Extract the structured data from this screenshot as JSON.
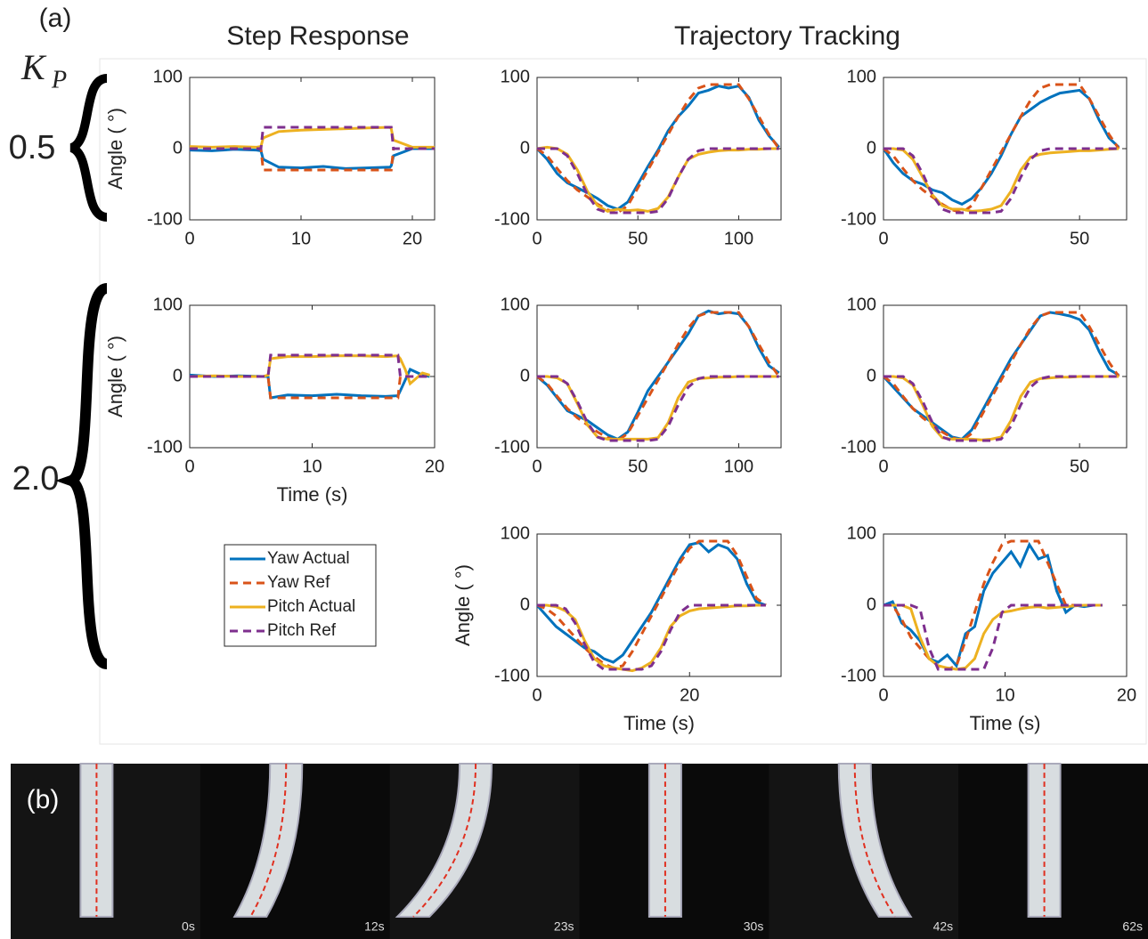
{
  "panel_a_label": "(a)",
  "panel_b_label": "(b)",
  "column_titles": [
    "Step Response",
    "Trajectory Tracking"
  ],
  "gain_symbol": {
    "base": "K",
    "sub": "P"
  },
  "gains": [
    "0.5",
    "2.0"
  ],
  "legend": [
    {
      "name": "Yaw Actual",
      "color": "#0072bd",
      "line_style": "solid"
    },
    {
      "name": "Yaw Ref",
      "color": "#d95319",
      "line_style": "dashed"
    },
    {
      "name": "Pitch Actual",
      "color": "#edb120",
      "line_style": "solid"
    },
    {
      "name": "Pitch Ref",
      "color": "#7e2f8e",
      "line_style": "dashed"
    }
  ],
  "photo_times": [
    "0s",
    "12s",
    "23s",
    "30s",
    "42s",
    "62s"
  ],
  "chart_data": [
    {
      "type": "line",
      "ylabel": "Angle ( °)",
      "xlim": [
        0,
        22
      ],
      "ylim": [
        -100,
        100
      ],
      "xticks": [
        0,
        10,
        20
      ],
      "yticks": [
        -100,
        0,
        100
      ],
      "x": [
        0,
        2,
        4,
        6,
        6.4,
        6.6,
        8,
        10,
        12,
        14,
        16,
        18,
        18.1,
        18.3,
        20,
        22
      ],
      "series": [
        {
          "values": [
            -2,
            -3,
            -1,
            -2,
            -3,
            -15,
            -26,
            -27,
            -25,
            -28,
            -27,
            -26,
            -24,
            -10,
            0,
            0
          ]
        },
        {
          "values": [
            0,
            0,
            0,
            0,
            0,
            -30,
            -30,
            -30,
            -30,
            -30,
            -30,
            -30,
            -30,
            0,
            0,
            0
          ]
        },
        {
          "values": [
            3,
            2,
            3,
            2,
            3,
            15,
            24,
            26,
            27,
            28,
            29,
            30,
            28,
            12,
            2,
            2
          ]
        },
        {
          "values": [
            0,
            0,
            0,
            0,
            0,
            30,
            30,
            30,
            30,
            30,
            30,
            30,
            30,
            0,
            0,
            0
          ]
        }
      ]
    },
    {
      "type": "line",
      "xlim": [
        0,
        121
      ],
      "ylim": [
        -100,
        100
      ],
      "xticks": [
        0,
        50,
        100
      ],
      "yticks": [
        -100,
        0,
        100
      ],
      "x": [
        0,
        5,
        10,
        15,
        20,
        25,
        30,
        35,
        40,
        45,
        50,
        55,
        60,
        65,
        70,
        75,
        80,
        85,
        90,
        95,
        100,
        105,
        110,
        115,
        120
      ],
      "series": [
        {
          "values": [
            0,
            -15,
            -35,
            -48,
            -55,
            -62,
            -70,
            -80,
            -85,
            -75,
            -50,
            -25,
            -2,
            25,
            45,
            60,
            78,
            82,
            88,
            85,
            88,
            72,
            40,
            18,
            2
          ]
        },
        {
          "values": [
            0,
            -10,
            -28,
            -45,
            -58,
            -68,
            -78,
            -86,
            -90,
            -80,
            -55,
            -30,
            -5,
            20,
            45,
            68,
            85,
            90,
            90,
            90,
            90,
            70,
            45,
            20,
            0
          ]
        },
        {
          "values": [
            0,
            2,
            0,
            -8,
            -30,
            -60,
            -80,
            -88,
            -85,
            -87,
            -86,
            -88,
            -84,
            -68,
            -40,
            -15,
            -8,
            -5,
            -3,
            -2,
            -2,
            -1,
            -1,
            0,
            0
          ]
        },
        {
          "values": [
            0,
            0,
            0,
            -10,
            -35,
            -65,
            -85,
            -90,
            -90,
            -90,
            -90,
            -90,
            -88,
            -70,
            -40,
            -15,
            -3,
            0,
            0,
            0,
            0,
            0,
            0,
            0,
            0
          ]
        }
      ]
    },
    {
      "type": "line",
      "xlim": [
        0,
        62
      ],
      "ylim": [
        -100,
        100
      ],
      "xticks": [
        0,
        50
      ],
      "yticks": [
        -100,
        0,
        100
      ],
      "x": [
        0,
        2.5,
        5,
        7.5,
        10,
        12.5,
        15,
        17.5,
        20,
        22.5,
        25,
        27.5,
        30,
        32.5,
        35,
        37.5,
        40,
        42.5,
        45,
        47.5,
        50,
        52.5,
        55,
        57.5,
        60
      ],
      "series": [
        {
          "values": [
            0,
            -20,
            -35,
            -45,
            -50,
            -58,
            -62,
            -72,
            -78,
            -70,
            -55,
            -35,
            -10,
            20,
            45,
            55,
            65,
            72,
            78,
            80,
            82,
            70,
            40,
            15,
            2
          ]
        },
        {
          "values": [
            0,
            -10,
            -28,
            -45,
            -58,
            -68,
            -78,
            -86,
            -90,
            -80,
            -55,
            -30,
            -5,
            20,
            45,
            68,
            85,
            90,
            90,
            90,
            90,
            70,
            45,
            20,
            0
          ]
        },
        {
          "values": [
            0,
            0,
            -2,
            -15,
            -40,
            -65,
            -80,
            -85,
            -85,
            -88,
            -87,
            -85,
            -80,
            -60,
            -30,
            -12,
            -8,
            -6,
            -5,
            -4,
            -3,
            -3,
            -2,
            -1,
            0
          ]
        },
        {
          "values": [
            0,
            0,
            0,
            -10,
            -35,
            -65,
            -85,
            -90,
            -90,
            -90,
            -90,
            -90,
            -88,
            -70,
            -40,
            -15,
            -3,
            0,
            0,
            0,
            0,
            0,
            0,
            0,
            0
          ]
        }
      ]
    },
    {
      "type": "line",
      "ylabel": "Angle ( °)",
      "xlabel": "Time (s)",
      "xlim": [
        0,
        20
      ],
      "ylim": [
        -100,
        100
      ],
      "xticks": [
        0,
        10,
        20
      ],
      "yticks": [
        -100,
        0,
        100
      ],
      "x": [
        0,
        2,
        4,
        6,
        6.4,
        6.6,
        8,
        10,
        12,
        14,
        16,
        17,
        17.2,
        17.6,
        18,
        19,
        19.6
      ],
      "series": [
        {
          "values": [
            2,
            0,
            1,
            0,
            0,
            -30,
            -26,
            -27,
            -25,
            -27,
            -28,
            -27,
            -20,
            -5,
            10,
            2,
            0
          ]
        },
        {
          "values": [
            0,
            0,
            0,
            0,
            0,
            -30,
            -30,
            -30,
            -30,
            -30,
            -30,
            -30,
            0,
            0,
            0,
            0,
            0
          ]
        },
        {
          "values": [
            0,
            1,
            0,
            0,
            2,
            25,
            28,
            28,
            29,
            29,
            28,
            29,
            25,
            10,
            -10,
            5,
            2
          ]
        },
        {
          "values": [
            0,
            0,
            0,
            0,
            0,
            30,
            30,
            30,
            30,
            30,
            30,
            30,
            0,
            0,
            0,
            0,
            0
          ]
        }
      ]
    },
    {
      "type": "line",
      "xlim": [
        0,
        121
      ],
      "ylim": [
        -100,
        100
      ],
      "xticks": [
        0,
        50,
        100
      ],
      "yticks": [
        -100,
        0,
        100
      ],
      "x": [
        0,
        5,
        10,
        15,
        20,
        25,
        30,
        35,
        40,
        45,
        50,
        55,
        60,
        65,
        70,
        75,
        80,
        85,
        90,
        95,
        100,
        105,
        110,
        115,
        120
      ],
      "series": [
        {
          "values": [
            0,
            -12,
            -30,
            -48,
            -55,
            -62,
            -72,
            -82,
            -88,
            -78,
            -50,
            -20,
            0,
            20,
            40,
            60,
            85,
            92,
            88,
            90,
            88,
            70,
            40,
            15,
            5
          ]
        },
        {
          "values": [
            0,
            -10,
            -28,
            -45,
            -58,
            -68,
            -78,
            -86,
            -90,
            -80,
            -55,
            -30,
            -5,
            20,
            45,
            68,
            85,
            90,
            90,
            90,
            90,
            70,
            45,
            20,
            0
          ]
        },
        {
          "values": [
            0,
            0,
            -2,
            -10,
            -38,
            -68,
            -85,
            -88,
            -88,
            -88,
            -88,
            -88,
            -86,
            -65,
            -30,
            -8,
            -3,
            -2,
            -1,
            -1,
            0,
            0,
            0,
            0,
            0
          ]
        },
        {
          "values": [
            0,
            0,
            0,
            -10,
            -35,
            -65,
            -85,
            -90,
            -90,
            -90,
            -90,
            -90,
            -88,
            -70,
            -40,
            -15,
            -3,
            0,
            0,
            0,
            0,
            0,
            0,
            0,
            0
          ]
        }
      ]
    },
    {
      "type": "line",
      "xlim": [
        0,
        62
      ],
      "ylim": [
        -100,
        100
      ],
      "xticks": [
        0,
        50
      ],
      "yticks": [
        -100,
        0,
        100
      ],
      "x": [
        0,
        2.5,
        5,
        7.5,
        10,
        12.5,
        15,
        17.5,
        20,
        22.5,
        25,
        27.5,
        30,
        32.5,
        35,
        37.5,
        40,
        42.5,
        45,
        47.5,
        50,
        52.5,
        55,
        57.5,
        60
      ],
      "series": [
        {
          "values": [
            0,
            -15,
            -30,
            -45,
            -55,
            -65,
            -75,
            -85,
            -88,
            -75,
            -50,
            -25,
            0,
            25,
            45,
            65,
            85,
            90,
            88,
            85,
            80,
            65,
            35,
            10,
            2
          ]
        },
        {
          "values": [
            0,
            -10,
            -28,
            -45,
            -58,
            -68,
            -78,
            -86,
            -90,
            -80,
            -55,
            -30,
            -5,
            20,
            45,
            68,
            85,
            90,
            90,
            90,
            90,
            70,
            45,
            20,
            0
          ]
        },
        {
          "values": [
            0,
            0,
            -2,
            -12,
            -40,
            -70,
            -86,
            -88,
            -88,
            -88,
            -89,
            -88,
            -85,
            -62,
            -28,
            -8,
            -3,
            -2,
            -1,
            -1,
            0,
            0,
            0,
            0,
            0
          ]
        },
        {
          "values": [
            0,
            0,
            0,
            -10,
            -35,
            -65,
            -85,
            -90,
            -90,
            -90,
            -90,
            -90,
            -88,
            -70,
            -40,
            -15,
            -3,
            0,
            0,
            0,
            0,
            0,
            0,
            0,
            0
          ]
        }
      ]
    },
    {
      "type": "line",
      "ylabel": "Angle ( °)",
      "xlabel": "Time (s)",
      "xlim": [
        0,
        32
      ],
      "ylim": [
        -100,
        100
      ],
      "xticks": [
        0,
        20
      ],
      "yticks": [
        -100,
        0,
        100
      ],
      "x": [
        0,
        1.25,
        2.5,
        3.75,
        5,
        6.25,
        7.5,
        8.75,
        10,
        11.25,
        12.5,
        13.75,
        15,
        16.25,
        17.5,
        18.75,
        20,
        21.25,
        22.5,
        23.75,
        25,
        26.25,
        27.5,
        28.75,
        30
      ],
      "series": [
        {
          "values": [
            0,
            -15,
            -30,
            -40,
            -50,
            -60,
            -65,
            -75,
            -80,
            -70,
            -50,
            -30,
            -10,
            15,
            40,
            65,
            85,
            88,
            75,
            85,
            80,
            65,
            30,
            5,
            0
          ]
        },
        {
          "values": [
            0,
            -5,
            -15,
            -30,
            -45,
            -60,
            -72,
            -82,
            -88,
            -85,
            -65,
            -40,
            -15,
            10,
            35,
            60,
            80,
            90,
            90,
            90,
            90,
            70,
            40,
            10,
            0
          ]
        },
        {
          "values": [
            0,
            0,
            -2,
            -8,
            -20,
            -50,
            -75,
            -85,
            -88,
            -90,
            -92,
            -88,
            -80,
            -60,
            -30,
            -15,
            -8,
            -5,
            -4,
            -3,
            -2,
            -1,
            -1,
            0,
            0
          ]
        },
        {
          "values": [
            0,
            0,
            0,
            -5,
            -25,
            -55,
            -80,
            -90,
            -90,
            -90,
            -90,
            -90,
            -85,
            -65,
            -35,
            -10,
            0,
            0,
            0,
            0,
            0,
            0,
            0,
            0,
            0
          ]
        }
      ]
    },
    {
      "type": "line",
      "xlabel": "Time (s)",
      "xlim": [
        0,
        20
      ],
      "ylim": [
        -100,
        100
      ],
      "xticks": [
        0,
        10,
        20
      ],
      "yticks": [
        -100,
        0,
        100
      ],
      "x": [
        0,
        0.75,
        1.5,
        2.25,
        3,
        3.75,
        4.5,
        5.25,
        6,
        6.75,
        7.5,
        8.25,
        9,
        9.75,
        10.5,
        11.25,
        12,
        12.75,
        13.5,
        14.25,
        15,
        15.75,
        16.5,
        17.25,
        18
      ],
      "series": [
        {
          "values": [
            0,
            5,
            -25,
            -35,
            -50,
            -75,
            -80,
            -70,
            -85,
            -40,
            -30,
            20,
            45,
            60,
            75,
            55,
            85,
            65,
            70,
            20,
            -10,
            0,
            -2,
            0,
            0
          ]
        },
        {
          "values": [
            0,
            0,
            -20,
            -45,
            -60,
            -75,
            -85,
            -90,
            -85,
            -50,
            -10,
            30,
            60,
            85,
            90,
            90,
            90,
            90,
            60,
            30,
            0,
            0,
            0,
            0,
            0
          ]
        },
        {
          "values": [
            0,
            0,
            0,
            -5,
            -45,
            -75,
            -85,
            -88,
            -90,
            -88,
            -75,
            -40,
            -20,
            -10,
            -8,
            -5,
            -3,
            -2,
            -4,
            -3,
            -2,
            -1,
            0,
            0,
            0
          ]
        },
        {
          "values": [
            0,
            0,
            0,
            0,
            -5,
            -60,
            -90,
            -90,
            -90,
            -90,
            -90,
            -90,
            -60,
            -10,
            0,
            0,
            0,
            0,
            0,
            0,
            0,
            0,
            0,
            0,
            0
          ]
        }
      ]
    }
  ]
}
